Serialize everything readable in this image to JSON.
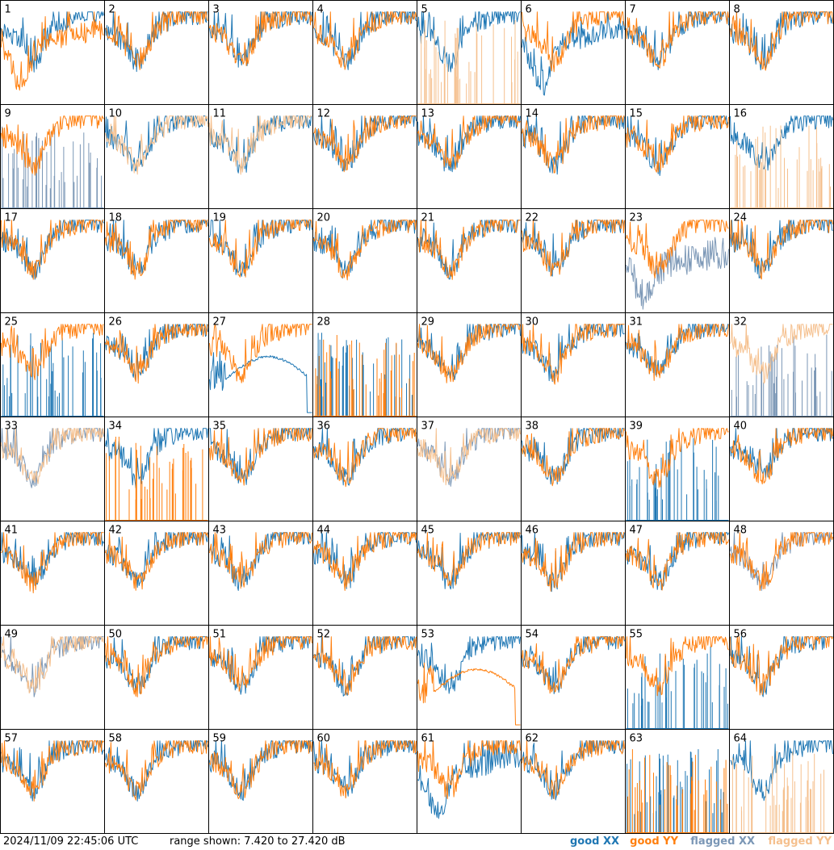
{
  "footer": {
    "timestamp": "2024/11/09 22:45:06 UTC",
    "range_text": "range shown: 7.420 to 27.420 dB"
  },
  "legend": {
    "good_xx": "good XX",
    "good_yy": "good YY",
    "flagged_xx": "flagged XX",
    "flagged_yy": "flagged YY"
  },
  "colors": {
    "good_xx": "#1f77b4",
    "good_yy": "#ff7f0e",
    "flagged_xx": "#7b97b6",
    "flagged_yy": "#f5c08e"
  },
  "chart_data": {
    "type": "line",
    "title": "",
    "xlabel": "",
    "ylabel": "",
    "ylim": [
      7.42,
      27.42
    ],
    "grid": {
      "rows": 8,
      "cols": 8
    },
    "panels": [
      {
        "label": "1",
        "xx": "good",
        "yy": "good",
        "yy_shape": "dip"
      },
      {
        "label": "2",
        "xx": "good",
        "yy": "good"
      },
      {
        "label": "3",
        "xx": "good",
        "yy": "good"
      },
      {
        "label": "4",
        "xx": "good",
        "yy": "good"
      },
      {
        "label": "5",
        "xx": "good",
        "yy": "flagged",
        "yy_shape": "spikes"
      },
      {
        "label": "6",
        "xx": "good",
        "yy": "good",
        "xx_shape": "dip"
      },
      {
        "label": "7",
        "xx": "good",
        "yy": "good"
      },
      {
        "label": "8",
        "xx": "good",
        "yy": "good"
      },
      {
        "label": "9",
        "xx": "flagged",
        "yy": "good",
        "xx_shape": "spikes"
      },
      {
        "label": "10",
        "xx": "good",
        "yy": "flagged"
      },
      {
        "label": "11",
        "xx": "good",
        "yy": "flagged"
      },
      {
        "label": "12",
        "xx": "good",
        "yy": "good"
      },
      {
        "label": "13",
        "xx": "good",
        "yy": "good"
      },
      {
        "label": "14",
        "xx": "good",
        "yy": "good"
      },
      {
        "label": "15",
        "xx": "good",
        "yy": "good"
      },
      {
        "label": "16",
        "xx": "good",
        "yy": "flagged",
        "yy_shape": "spikes"
      },
      {
        "label": "17",
        "xx": "good",
        "yy": "good"
      },
      {
        "label": "18",
        "xx": "good",
        "yy": "good"
      },
      {
        "label": "19",
        "xx": "good",
        "yy": "good"
      },
      {
        "label": "20",
        "xx": "good",
        "yy": "good"
      },
      {
        "label": "21",
        "xx": "good",
        "yy": "good"
      },
      {
        "label": "22",
        "xx": "good",
        "yy": "good"
      },
      {
        "label": "23",
        "xx": "flagged",
        "yy": "good",
        "xx_shape": "low"
      },
      {
        "label": "24",
        "xx": "good",
        "yy": "good"
      },
      {
        "label": "25",
        "xx": "good",
        "yy": "good",
        "xx_shape": "spikes"
      },
      {
        "label": "26",
        "xx": "good",
        "yy": "good"
      },
      {
        "label": "27",
        "xx": "good",
        "yy": "good",
        "xx_shape": "arc"
      },
      {
        "label": "28",
        "xx": "good",
        "yy": "good",
        "xx_shape": "spikes",
        "yy_shape": "spikes"
      },
      {
        "label": "29",
        "xx": "good",
        "yy": "good"
      },
      {
        "label": "30",
        "xx": "good",
        "yy": "good"
      },
      {
        "label": "31",
        "xx": "good",
        "yy": "good"
      },
      {
        "label": "32",
        "xx": "flagged",
        "yy": "flagged",
        "xx_shape": "spikes"
      },
      {
        "label": "33",
        "xx": "flagged",
        "yy": "flagged"
      },
      {
        "label": "34",
        "xx": "good",
        "yy": "good",
        "yy_shape": "spikes"
      },
      {
        "label": "35",
        "xx": "good",
        "yy": "good"
      },
      {
        "label": "36",
        "xx": "good",
        "yy": "good"
      },
      {
        "label": "37",
        "xx": "flagged",
        "yy": "flagged"
      },
      {
        "label": "38",
        "xx": "good",
        "yy": "good"
      },
      {
        "label": "39",
        "xx": "good",
        "yy": "good",
        "xx_shape": "spikes"
      },
      {
        "label": "40",
        "xx": "good",
        "yy": "good"
      },
      {
        "label": "41",
        "xx": "good",
        "yy": "good"
      },
      {
        "label": "42",
        "xx": "good",
        "yy": "good"
      },
      {
        "label": "43",
        "xx": "good",
        "yy": "good"
      },
      {
        "label": "44",
        "xx": "good",
        "yy": "good"
      },
      {
        "label": "45",
        "xx": "good",
        "yy": "good"
      },
      {
        "label": "46",
        "xx": "good",
        "yy": "good"
      },
      {
        "label": "47",
        "xx": "good",
        "yy": "good"
      },
      {
        "label": "48",
        "xx": "flagged",
        "yy": "good"
      },
      {
        "label": "49",
        "xx": "flagged",
        "yy": "flagged"
      },
      {
        "label": "50",
        "xx": "good",
        "yy": "good"
      },
      {
        "label": "51",
        "xx": "good",
        "yy": "good"
      },
      {
        "label": "52",
        "xx": "good",
        "yy": "good"
      },
      {
        "label": "53",
        "xx": "good",
        "yy": "good",
        "yy_shape": "arc"
      },
      {
        "label": "54",
        "xx": "good",
        "yy": "good"
      },
      {
        "label": "55",
        "xx": "good",
        "yy": "good",
        "xx_shape": "spikes"
      },
      {
        "label": "56",
        "xx": "good",
        "yy": "good"
      },
      {
        "label": "57",
        "xx": "good",
        "yy": "good"
      },
      {
        "label": "58",
        "xx": "good",
        "yy": "good"
      },
      {
        "label": "59",
        "xx": "good",
        "yy": "good"
      },
      {
        "label": "60",
        "xx": "good",
        "yy": "good"
      },
      {
        "label": "61",
        "xx": "good",
        "yy": "good",
        "xx_shape": "dip"
      },
      {
        "label": "62",
        "xx": "good",
        "yy": "good"
      },
      {
        "label": "63",
        "xx": "good",
        "yy": "good",
        "xx_shape": "spikes",
        "yy_shape": "spikes"
      },
      {
        "label": "64",
        "xx": "good",
        "yy": "flagged",
        "yy_shape": "spikes"
      }
    ]
  }
}
